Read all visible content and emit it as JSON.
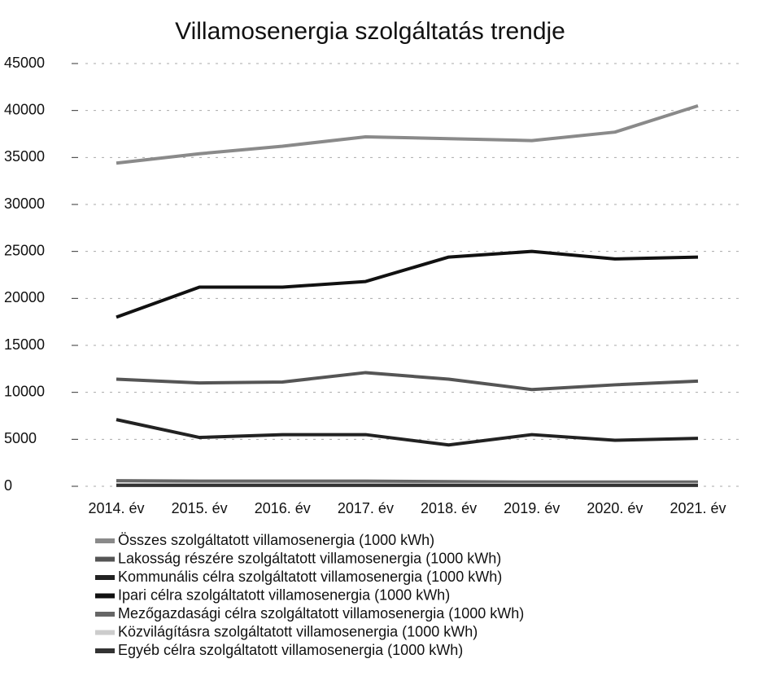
{
  "chart_data": {
    "type": "line",
    "title": "Villamosenergia szolgáltatás trendje",
    "categories": [
      "2014. év",
      "2015. év",
      "2016. év",
      "2017. év",
      "2018. év",
      "2019. év",
      "2020. év",
      "2021. év"
    ],
    "series": [
      {
        "name": "Összes szolgáltatott villamosenergia (1000 kWh)",
        "color": "#8a8a8a",
        "values": [
          34400,
          35400,
          36200,
          37200,
          37000,
          36800,
          37700,
          40500
        ]
      },
      {
        "name": "Lakosság részére szolgáltatott villamosenergia (1000 kWh)",
        "color": "#555555",
        "values": [
          11400,
          11000,
          11100,
          12100,
          11400,
          10300,
          10800,
          11200
        ]
      },
      {
        "name": "Kommunális célra szolgáltatott villamosenergia (1000 kWh)",
        "color": "#222222",
        "values": [
          7100,
          5200,
          5500,
          5500,
          4400,
          5500,
          4900,
          5100
        ]
      },
      {
        "name": "Ipari célra szolgáltatott villamosenergia (1000 kWh)",
        "color": "#111111",
        "values": [
          18000,
          21200,
          21200,
          21800,
          24400,
          25000,
          24200,
          24400
        ]
      },
      {
        "name": "Mezőgazdasági célra szolgáltatott villamosenergia (1000 kWh)",
        "color": "#666666",
        "values": [
          600,
          550,
          550,
          550,
          500,
          450,
          450,
          450
        ]
      },
      {
        "name": "Közvilágításra szolgáltatott villamosenergia (1000 kWh)",
        "color": "#cccccc",
        "values": [
          200,
          200,
          200,
          200,
          200,
          200,
          200,
          200
        ]
      },
      {
        "name": "Egyéb célra szolgáltatott villamosenergia (1000 kWh)",
        "color": "#333333",
        "values": [
          100,
          100,
          100,
          100,
          100,
          100,
          100,
          100
        ]
      }
    ],
    "ylim": [
      0,
      45000
    ],
    "yticks": [
      0,
      5000,
      10000,
      15000,
      20000,
      25000,
      30000,
      35000,
      40000,
      45000
    ],
    "grid": true
  }
}
